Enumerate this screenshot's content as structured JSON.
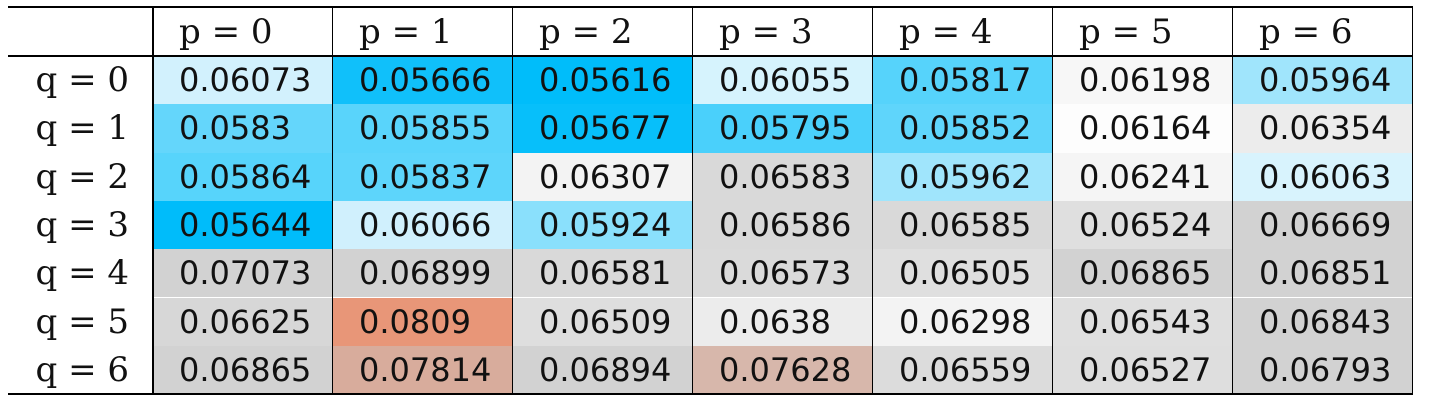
{
  "chart_data": {
    "type": "heatmap",
    "column_headers": [
      "p = 0",
      "p = 1",
      "p = 2",
      "p = 3",
      "p = 4",
      "p = 5",
      "p = 6"
    ],
    "row_headers": [
      "q = 0",
      "q = 1",
      "q = 2",
      "q = 3",
      "q = 4",
      "q = 5",
      "q = 6"
    ],
    "values": [
      [
        "0.06073",
        "0.05666",
        "0.05616",
        "0.06055",
        "0.05817",
        "0.06198",
        "0.05964"
      ],
      [
        "0.0583",
        "0.05855",
        "0.05677",
        "0.05795",
        "0.05852",
        "0.06164",
        "0.06354"
      ],
      [
        "0.05864",
        "0.05837",
        "0.06307",
        "0.06583",
        "0.05962",
        "0.06241",
        "0.06063"
      ],
      [
        "0.05644",
        "0.06066",
        "0.05924",
        "0.06586",
        "0.06585",
        "0.06524",
        "0.06669"
      ],
      [
        "0.07073",
        "0.06899",
        "0.06581",
        "0.06573",
        "0.06505",
        "0.06865",
        "0.06851"
      ],
      [
        "0.06625",
        "0.0809",
        "0.06509",
        "0.0638",
        "0.06298",
        "0.06543",
        "0.06843"
      ],
      [
        "0.06865",
        "0.07814",
        "0.06894",
        "0.07628",
        "0.06559",
        "0.06527",
        "0.06793"
      ]
    ],
    "cell_colors": [
      [
        "#d2f1fd",
        "#10c0fa",
        "#00bdfa",
        "#d6f3fd",
        "#56d3fb",
        "#f7f7f7",
        "#a0e5fc"
      ],
      [
        "#64d6fb",
        "#59d4fb",
        "#07bffa",
        "#4ad0fb",
        "#5fd5fb",
        "#fdfdfd",
        "#ececec"
      ],
      [
        "#57d4fb",
        "#5dd5fb",
        "#f3f3f3",
        "#d9d9d9",
        "#a0e5fc",
        "#f5f5f5",
        "#d8f3fd"
      ],
      [
        "#00bcfa",
        "#d0f0fd",
        "#8ae0fc",
        "#d9d9d9",
        "#d9d9d9",
        "#dfdfdf",
        "#d2d2d2"
      ],
      [
        "#d2d2d2",
        "#d2d2d2",
        "#d9d9d9",
        "#dadada",
        "#dfdfdf",
        "#d2d2d2",
        "#d2d2d2"
      ],
      [
        "#d7d7d7",
        "#e89678",
        "#dedede",
        "#ececec",
        "#f3f3f3",
        "#dfdfdf",
        "#d2d2d2"
      ],
      [
        "#d2d2d2",
        "#d8ac9c",
        "#d2d2d2",
        "#d7b7ab",
        "#dcdcdc",
        "#dedede",
        "#d2d2d2"
      ]
    ]
  }
}
